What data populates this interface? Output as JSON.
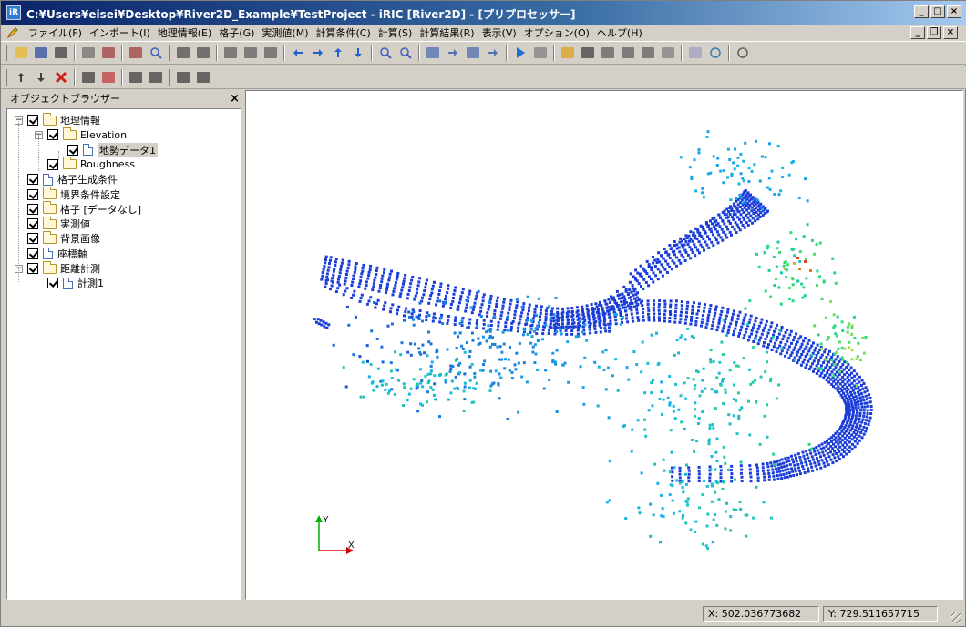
{
  "window": {
    "title": "C:¥Users¥eisei¥Desktop¥River2D_Example¥TestProject - iRIC [River2D] - [プリプロセッサー]",
    "app_icon_text": "iR",
    "controls": {
      "minimize": "_",
      "restore": "□",
      "close": "×"
    },
    "child_controls": {
      "minimize": "_",
      "restore": "❐",
      "close": "×"
    }
  },
  "menu": {
    "items": [
      "ファイル(F)",
      "インポート(I)",
      "地理情報(E)",
      "格子(G)",
      "実測値(M)",
      "計算条件(C)",
      "計算(S)",
      "計算結果(R)",
      "表示(V)",
      "オプション(O)",
      "ヘルプ(H)"
    ]
  },
  "toolbar1": {
    "icons": [
      "open-folder-icon",
      "save-icon",
      "camera-icon",
      "print-icon",
      "undo-icon",
      "redo-icon",
      "zoom-fit-icon",
      "axis-x-icon",
      "axis-xy-icon",
      "rotate-x-icon",
      "rotate-y-icon",
      "rotate-z-icon",
      "pan-left-icon",
      "pan-right-icon",
      "pan-up-icon",
      "pan-down-icon",
      "zoom-in-icon",
      "zoom-out-icon",
      "widen-h-icon",
      "narrow-h-icon",
      "widen-v-icon",
      "narrow-v-icon",
      "run-icon",
      "stop-icon",
      "pencil-icon",
      "grid-icon",
      "2d-view-icon",
      "2d-result-icon",
      "3d-view-icon",
      "graph-icon",
      "chart-icon",
      "settings-icon",
      "mouse-icon"
    ]
  },
  "toolbar2": {
    "icons": [
      "move-up-icon",
      "move-down-icon",
      "delete-icon",
      "select-point-icon",
      "select-polygon-icon",
      "select-node-icon",
      "select-area-icon",
      "add-line-icon",
      "remove-line-icon"
    ]
  },
  "object_browser": {
    "title": "オブジェクトブラウザー",
    "close_label": "×",
    "items": [
      {
        "label": "地理情報",
        "level": 0,
        "type": "folder",
        "expander": "−"
      },
      {
        "label": "Elevation",
        "level": 1,
        "type": "folder",
        "expander": "−"
      },
      {
        "label": "地勢データ1",
        "level": 2,
        "type": "doc",
        "selected": true
      },
      {
        "label": "Roughness",
        "level": 1,
        "type": "folder"
      },
      {
        "label": "格子生成条件",
        "level": 0,
        "type": "doc"
      },
      {
        "label": "境界条件設定",
        "level": 0,
        "type": "folder"
      },
      {
        "label": "格子 [データなし]",
        "level": 0,
        "type": "folder"
      },
      {
        "label": "実測値",
        "level": 0,
        "type": "folder"
      },
      {
        "label": "背景画像",
        "level": 0,
        "type": "folder"
      },
      {
        "label": "座標軸",
        "level": 0,
        "type": "doc"
      },
      {
        "label": "距離計測",
        "level": 0,
        "type": "folder",
        "expander": "−"
      },
      {
        "label": "計測1",
        "level": 1,
        "type": "doc"
      }
    ]
  },
  "view": {
    "axis_y_label": "Y",
    "axis_x_label": "X",
    "colors": {
      "low": "#1a3cd8",
      "mid": "#19b4e6",
      "high": "#e62020"
    }
  },
  "status": {
    "x_readout": "X: 502.036773682",
    "y_readout": "Y: 729.511657715"
  }
}
